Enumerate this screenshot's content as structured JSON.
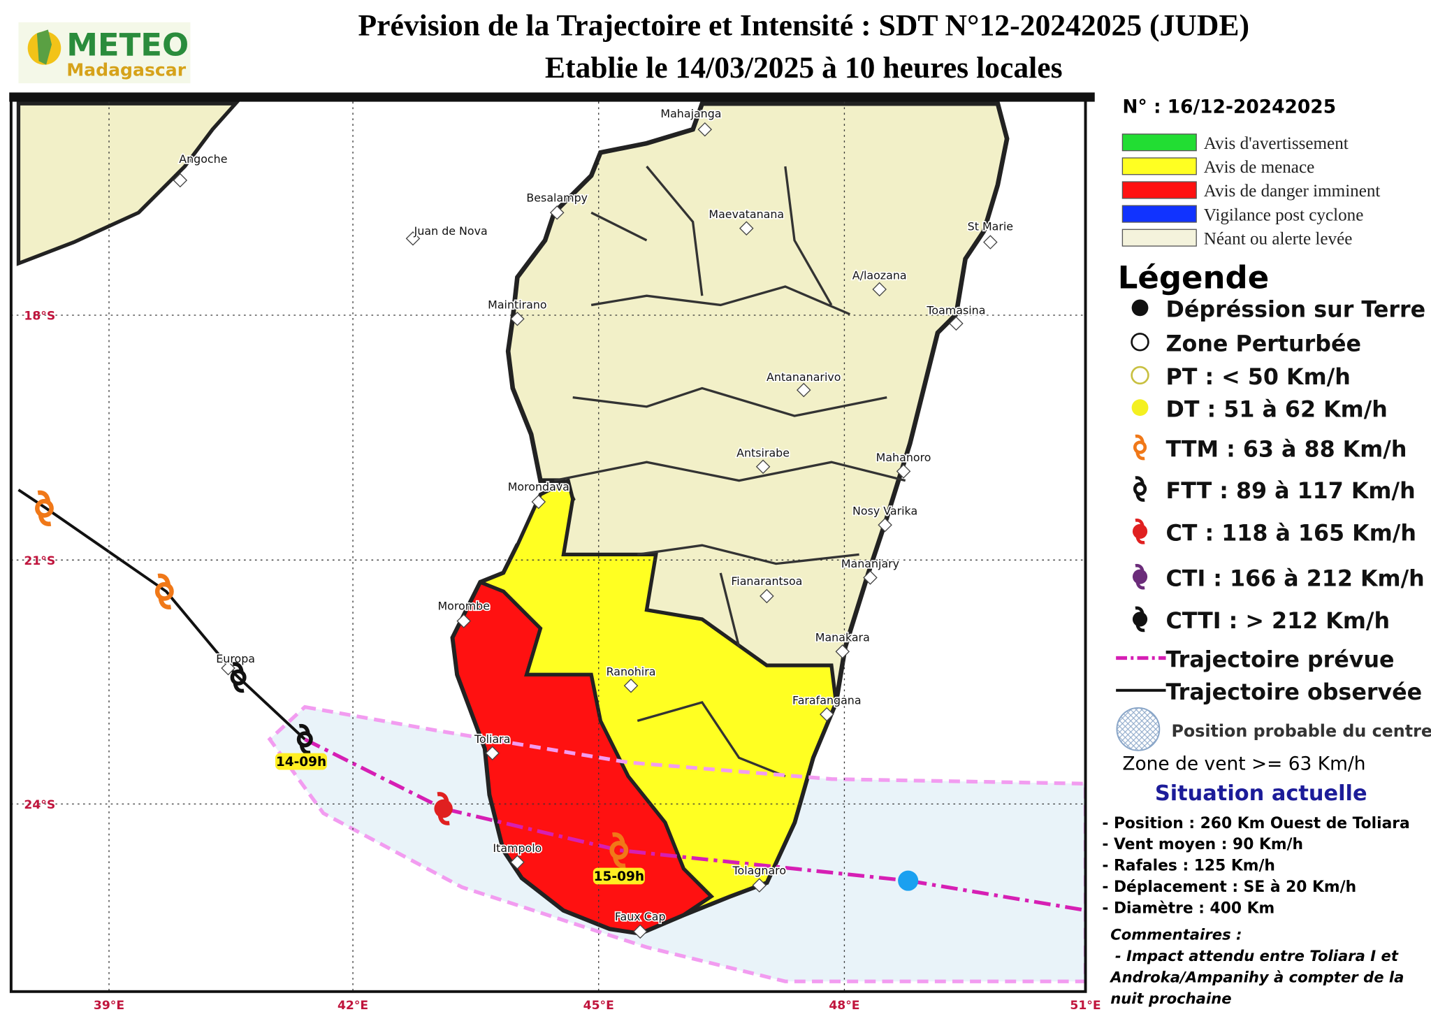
{
  "header": {
    "logo_name": "METEO",
    "logo_sub": "Madagascar",
    "title": "Prévision de la Trajectoire et Intensité : SDT N°12-20242025 (JUDE)",
    "subtitle": "Etablie le 14/03/2025 à 10 heures locales"
  },
  "map": {
    "longitudes": [
      "39°E",
      "42°E",
      "45°E",
      "48°E",
      "51°E"
    ],
    "latitudes": [
      "18°S",
      "21°S",
      "24°S"
    ],
    "places": [
      "Mahajanga",
      "Angoche",
      "Besalampy",
      "Juan de Nova",
      "Maevatanana",
      "St Marie",
      "A/laozana",
      "Maintirano",
      "Toamasina",
      "Antananarivo",
      "Antsirabe",
      "Mahanoro",
      "Morondava",
      "Nosy Varika",
      "Mananjary",
      "Fianarantsoa",
      "Morombe",
      "Manakara",
      "Europa",
      "Ranohira",
      "Farafangana",
      "Toliara",
      "Itampolo",
      "Tolagnaro",
      "Faux Cap"
    ],
    "track_labels": [
      "14-09h",
      "15-09h"
    ]
  },
  "bulletin": "N° : 16/12-20242025",
  "alert_levels": [
    {
      "label": "Avis d'avertissement",
      "color": "#22dd33"
    },
    {
      "label": "Avis de menace",
      "color": "#ffff22"
    },
    {
      "label": "Avis de danger imminent",
      "color": "#ff1111"
    },
    {
      "label": "Vigilance post cyclone",
      "color": "#1133ff"
    },
    {
      "label": "Néant ou alerte levée",
      "color": "#f4f3dc"
    }
  ],
  "legend": {
    "title": "Légende",
    "items": [
      "Dépréssion sur Terre",
      "Zone Perturbée",
      "PT : < 50 Km/h",
      "DT : 51 à 62 Km/h",
      "TTM : 63 à 88 Km/h",
      "FTT : 89 à 117 Km/h",
      "CT : 118 à 165 Km/h",
      "CTI : 166 à 212 Km/h",
      "CTTI : > 212 Km/h",
      "Trajectoire prévue",
      "Trajectoire observée"
    ],
    "probable_position": "Position probable du centre",
    "wind_zone": "Zone de vent >= 63 Km/h"
  },
  "situation": {
    "title": "Situation actuelle",
    "lines": [
      "- Position : 260 Km Ouest de Toliara",
      "- Vent moyen : 90 Km/h",
      "- Rafales : 125 Km/h",
      "- Déplacement : SE à 20 Km/h",
      "- Diamètre : 400 Km"
    ]
  },
  "comments": {
    "title": "Commentaires :",
    "lines": [
      "- Impact attendu entre Toliara I et",
      "Androka/Ampanihy à compter de la",
      "nuit prochaine"
    ]
  }
}
